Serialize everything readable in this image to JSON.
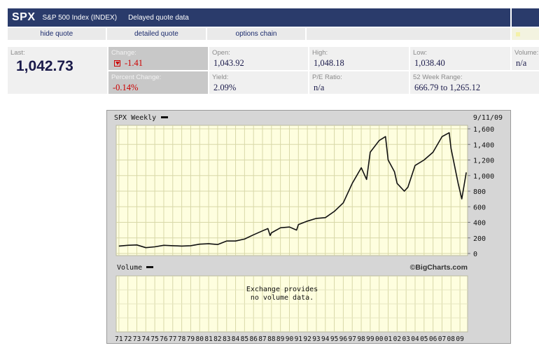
{
  "header": {
    "symbol": "SPX",
    "index_name": "S&P 500 Index (INDEX)",
    "delay_note": "Delayed quote data"
  },
  "nav": {
    "hide_quote": "hide quote",
    "detailed_quote": "detailed quote",
    "options_chain": "options chain"
  },
  "quote": {
    "last_label": "Last:",
    "last_value": "1,042.73",
    "change_label": "Change:",
    "change_value": "-1.41",
    "pct_change_label": "Percent Change:",
    "pct_change_value": "-0.14%",
    "open_label": "Open:",
    "open_value": "1,043.92",
    "yield_label": "Yield:",
    "yield_value": "2.09%",
    "high_label": "High:",
    "high_value": "1,048.18",
    "pe_label": "P/E Ratio:",
    "pe_value": "n/a",
    "low_label": "Low:",
    "low_value": "1,038.40",
    "range_label": "52 Week Range:",
    "range_low": "666.79",
    "range_to": "to",
    "range_high": "1,265.12",
    "volume_label": "Volume:",
    "volume_value": "n/a",
    "negative_color": "#cc0000"
  },
  "chart": {
    "title": "SPX Weekly",
    "date": "9/11/09",
    "volume_title": "Volume",
    "watermark": "©BigCharts.com",
    "no_volume_line1": "Exchange provides",
    "no_volume_line2": "no volume data.",
    "x_ticks": [
      "71",
      "72",
      "73",
      "74",
      "75",
      "76",
      "77",
      "78",
      "79",
      "80",
      "81",
      "82",
      "83",
      "84",
      "85",
      "86",
      "87",
      "88",
      "89",
      "90",
      "91",
      "92",
      "93",
      "94",
      "95",
      "96",
      "97",
      "98",
      "99",
      "00",
      "01",
      "02",
      "03",
      "04",
      "05",
      "06",
      "07",
      "08",
      "09"
    ]
  },
  "chart_data": {
    "type": "line",
    "title": "SPX Weekly",
    "x": [
      1971,
      1972,
      1973,
      1974,
      1975,
      1976,
      1977,
      1978,
      1979,
      1980,
      1981,
      1982,
      1983,
      1984,
      1985,
      1986,
      1987,
      1987.6,
      1987.85,
      1988,
      1989,
      1990,
      1990.8,
      1991,
      1992,
      1993,
      1994,
      1995,
      1996,
      1997,
      1998,
      1998.6,
      1999,
      2000,
      2000.7,
      2001,
      2001.7,
      2002,
      2002.8,
      2003.2,
      2004,
      2005,
      2006,
      2007,
      2007.8,
      2008,
      2008.8,
      2009.2,
      2009.7
    ],
    "y": [
      95,
      105,
      110,
      75,
      85,
      105,
      100,
      95,
      100,
      120,
      125,
      115,
      160,
      160,
      185,
      240,
      290,
      320,
      230,
      265,
      330,
      340,
      300,
      370,
      415,
      450,
      460,
      540,
      650,
      900,
      1100,
      950,
      1300,
      1450,
      1500,
      1200,
      1050,
      900,
      800,
      850,
      1130,
      1200,
      1300,
      1500,
      1550,
      1350,
      900,
      700,
      1040
    ],
    "ylim": [
      0,
      1600
    ],
    "y_ticks": [
      "1,600",
      "1,400",
      "1,200",
      "1,000",
      "800",
      "600",
      "400",
      "200",
      "0"
    ],
    "grid": true
  }
}
